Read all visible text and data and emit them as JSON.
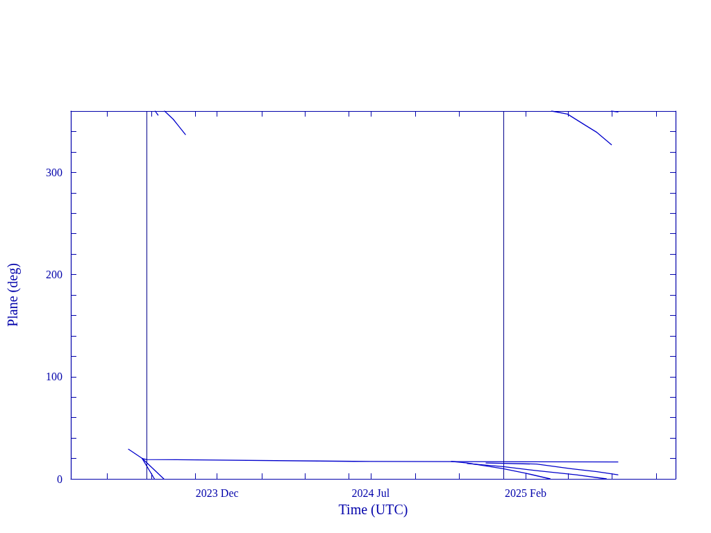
{
  "chart_data": {
    "type": "line",
    "xlabel": "Time (UTC)",
    "ylabel": "Plane (deg)",
    "xlim": [
      "2023-05-12",
      "2025-08-28"
    ],
    "ylim": [
      0,
      360
    ],
    "xticks": [
      {
        "value": "2023-07-01",
        "label": null
      },
      {
        "value": "2023-09-01",
        "label": null
      },
      {
        "value": "2023-11-01",
        "label": null
      },
      {
        "value": "2023-12-01",
        "label": "2023 Dec"
      },
      {
        "value": "2024-02-01",
        "label": null
      },
      {
        "value": "2024-04-01",
        "label": null
      },
      {
        "value": "2024-06-01",
        "label": null
      },
      {
        "value": "2024-07-01",
        "label": "2024 Jul"
      },
      {
        "value": "2024-09-01",
        "label": null
      },
      {
        "value": "2024-11-01",
        "label": null
      },
      {
        "value": "2025-01-01",
        "label": null
      },
      {
        "value": "2025-02-01",
        "label": "2025 Feb"
      },
      {
        "value": "2025-04-01",
        "label": null
      },
      {
        "value": "2025-06-01",
        "label": null
      },
      {
        "value": "2025-08-01",
        "label": null
      }
    ],
    "yticks": [
      0,
      {
        "value": 20,
        "label": null
      },
      {
        "value": 40,
        "label": null
      },
      {
        "value": 60,
        "label": null
      },
      {
        "value": 80,
        "label": null
      },
      100,
      {
        "value": 120,
        "label": null
      },
      {
        "value": 140,
        "label": null
      },
      {
        "value": 160,
        "label": null
      },
      {
        "value": 180,
        "label": null
      },
      200,
      {
        "value": 220,
        "label": null
      },
      {
        "value": 240,
        "label": null
      },
      {
        "value": 260,
        "label": null
      },
      {
        "value": 280,
        "label": null
      },
      300,
      {
        "value": 320,
        "label": null
      },
      {
        "value": 340,
        "label": null
      }
    ],
    "grid": false,
    "marker": "none",
    "line_style": "solid",
    "ref_lines": [
      {
        "axis": "x",
        "value": "2023-08-25",
        "color": "#00008b"
      },
      {
        "axis": "x",
        "value": "2025-01-01",
        "color": "#00008b"
      }
    ],
    "series": [
      {
        "color": "#0000cc",
        "x": [
          "2023-07-31",
          "2023-08-19",
          "2023-08-25",
          "2024-07-01",
          "2025-06-09"
        ],
        "values": [
          29,
          20,
          19,
          17,
          16.5
        ]
      },
      {
        "color": "#0000cc",
        "x": [
          "2023-08-19",
          "2023-09-05"
        ],
        "values": [
          20,
          0
        ]
      },
      {
        "color": "#0000cb",
        "x": [
          "2023-09-06",
          "2023-09-08",
          "2023-09-10"
        ],
        "values": [
          360,
          358,
          356
        ]
      },
      {
        "color": "#0000cc",
        "x": [
          "2023-08-19",
          "2023-09-18"
        ],
        "values": [
          20,
          0
        ]
      },
      {
        "color": "#0000cc",
        "x": [
          "2023-09-19",
          "2023-10-01",
          "2023-10-18"
        ],
        "values": [
          360,
          352,
          337
        ]
      },
      {
        "color": "#0000cc",
        "x": [
          "2024-10-21",
          "2024-11-12",
          "2025-01-01",
          "2025-02-01",
          "2025-03-07"
        ],
        "values": [
          17,
          15.5,
          10,
          5.5,
          0
        ]
      },
      {
        "color": "#0000cc",
        "x": [
          "2025-03-09",
          "2025-03-31",
          "2025-04-25",
          "2025-05-11",
          "2025-05-31"
        ],
        "values": [
          360,
          357,
          346,
          339,
          327
        ]
      },
      {
        "color": "#0000ca",
        "x": [
          "2024-11-12",
          "2025-01-01",
          "2025-02-16",
          "2025-04-12",
          "2025-05-24"
        ],
        "values": [
          15,
          12,
          8,
          4,
          0
        ]
      },
      {
        "color": "#0000cc",
        "x": [
          "2025-05-31",
          "2025-06-09"
        ],
        "values": [
          360,
          359
        ]
      },
      {
        "color": "#0000c9",
        "x": [
          "2024-12-08",
          "2025-02-16",
          "2025-04-05",
          "2025-05-11",
          "2025-06-09"
        ],
        "values": [
          15.5,
          14.5,
          10,
          7,
          4
        ]
      }
    ]
  }
}
